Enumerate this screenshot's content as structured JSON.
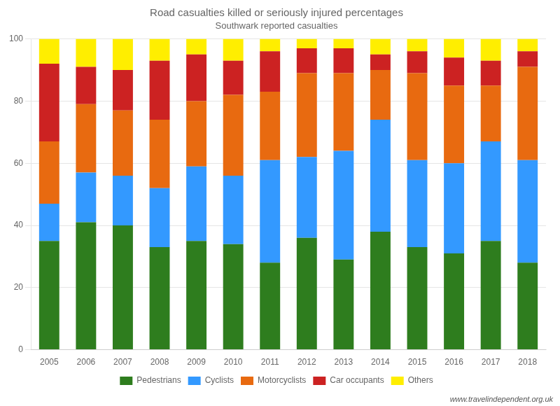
{
  "chart_data": {
    "type": "bar",
    "title": "Road casualties killed or seriously injured percentages",
    "subtitle": "Southwark reported casualties",
    "annotations": [
      "www.travelindependent.org.uk"
    ],
    "categories": [
      "2005",
      "2006",
      "2007",
      "2008",
      "2009",
      "2010",
      "2011",
      "2012",
      "2013",
      "2014",
      "2015",
      "2016",
      "2017",
      "2018"
    ],
    "series": [
      {
        "name": "Pedestrians",
        "color": "#2e7d1e",
        "values": [
          35,
          41,
          40,
          33,
          35,
          34,
          28,
          36,
          29,
          38,
          33,
          31,
          35,
          28
        ]
      },
      {
        "name": "Cyclists",
        "color": "#3399ff",
        "values": [
          12,
          16,
          16,
          19,
          24,
          22,
          33,
          26,
          35,
          36,
          28,
          29,
          32,
          33
        ]
      },
      {
        "name": "Motorcyclists",
        "color": "#e86a10",
        "values": [
          20,
          22,
          21,
          22,
          21,
          26,
          22,
          27,
          25,
          16,
          28,
          25,
          18,
          30
        ]
      },
      {
        "name": "Car occupants",
        "color": "#cc2222",
        "values": [
          25,
          12,
          13,
          19,
          15,
          11,
          13,
          8,
          8,
          5,
          7,
          9,
          8,
          5
        ]
      },
      {
        "name": "Others",
        "color": "#ffee00",
        "values": [
          8,
          9,
          10,
          7,
          5,
          7,
          4,
          3,
          3,
          5,
          4,
          6,
          7,
          4
        ]
      }
    ],
    "stacked": true,
    "ylim": [
      0,
      100
    ],
    "yticks": [
      0,
      20,
      40,
      60,
      80,
      100
    ],
    "grid": true,
    "legend": "bottom"
  }
}
